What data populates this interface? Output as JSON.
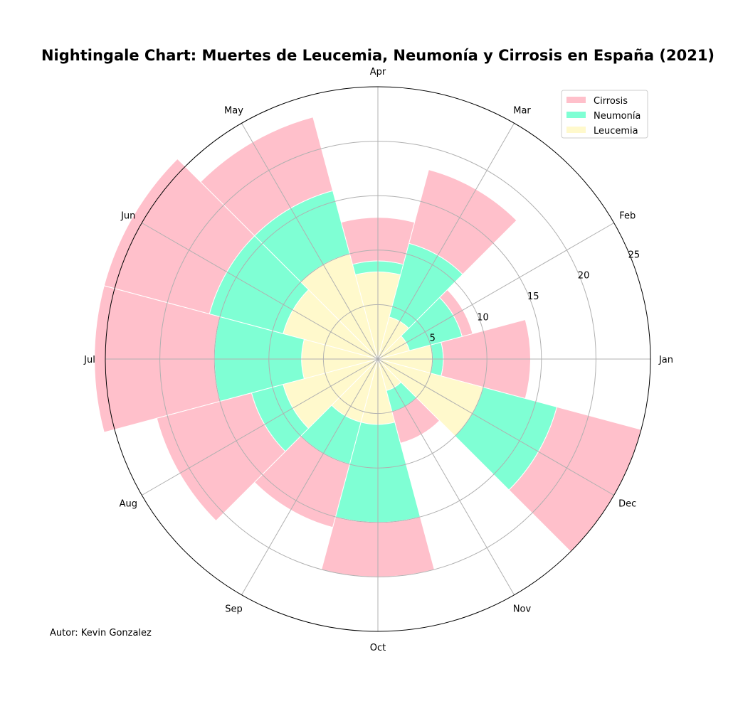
{
  "chart_data": {
    "type": "nightingale",
    "title": "Nightingale Chart: Muertes de Leucemia, Neumonía y Cirrosis en España (2021)",
    "categories": [
      "Jan",
      "Feb",
      "Mar",
      "Apr",
      "May",
      "Jun",
      "Jul",
      "Aug",
      "Sep",
      "Oct",
      "Nov",
      "Dec"
    ],
    "radial_ticks": [
      "5",
      "10",
      "15",
      "20",
      "25"
    ],
    "radial_tick_values": [
      5,
      10,
      15,
      20,
      25
    ],
    "rlim": [
      0,
      25
    ],
    "grid": true,
    "stacked": true,
    "series": [
      {
        "name": "Leucemia",
        "color": "#fff9cc",
        "values": [
          5,
          3,
          4,
          8,
          10,
          9,
          7,
          9,
          6,
          6,
          3,
          10
        ]
      },
      {
        "name": "Neumonía",
        "color": "#7fffd4",
        "values": [
          1,
          5,
          7,
          1,
          6,
          7,
          8,
          3,
          4,
          9,
          2,
          7
        ]
      },
      {
        "name": "Cirrosis",
        "color": "#ffc0cb",
        "values": [
          8,
          1,
          7,
          4,
          7,
          10,
          11,
          9,
          6,
          5,
          3,
          8
        ]
      }
    ],
    "legend": {
      "position": "top-right",
      "order": [
        "Cirrosis",
        "Neumonía",
        "Leucemia"
      ]
    },
    "annotation": "Autor: Kevin Gonzalez"
  }
}
